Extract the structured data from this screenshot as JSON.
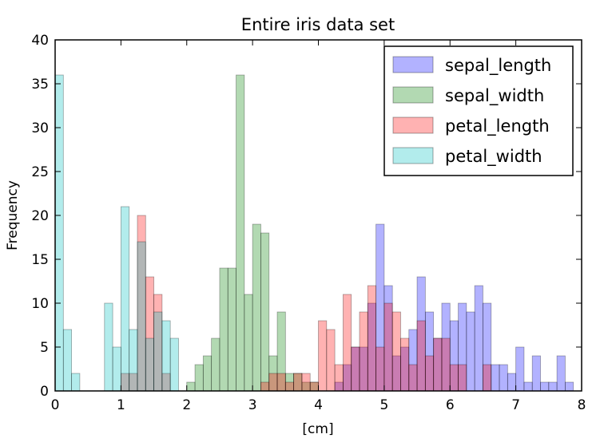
{
  "chart_data": {
    "type": "bar",
    "title": "Entire iris data set",
    "xlabel": "[cm]",
    "ylabel": "Frequency",
    "xlim": [
      0,
      8
    ],
    "ylim": [
      0,
      40
    ],
    "xticks": [
      "0",
      "1",
      "2",
      "3",
      "4",
      "5",
      "6",
      "7",
      "8"
    ],
    "yticks": [
      "0",
      "5",
      "10",
      "15",
      "20",
      "25",
      "30",
      "35",
      "40"
    ],
    "grid": false,
    "legend_position": "top-right",
    "bin_width": 0.125,
    "bin_starts": [
      0,
      0.125,
      0.25,
      0.375,
      0.5,
      0.625,
      0.75,
      0.875,
      1,
      1.125,
      1.25,
      1.375,
      1.5,
      1.625,
      1.75,
      1.875,
      2,
      2.125,
      2.25,
      2.375,
      2.5,
      2.625,
      2.75,
      2.875,
      3,
      3.125,
      3.25,
      3.375,
      3.5,
      3.625,
      3.75,
      3.875,
      4,
      4.125,
      4.25,
      4.375,
      4.5,
      4.625,
      4.75,
      4.875,
      5,
      5.125,
      5.25,
      5.375,
      5.5,
      5.625,
      5.75,
      5.875,
      6,
      6.125,
      6.25,
      6.375,
      6.5,
      6.625,
      6.75,
      6.875,
      7,
      7.125,
      7.25,
      7.375,
      7.5,
      7.625,
      7.75,
      7.875
    ],
    "series": [
      {
        "name": "sepal_length",
        "color": "#0000ff",
        "values": [
          0,
          0,
          0,
          0,
          0,
          0,
          0,
          0,
          0,
          0,
          0,
          0,
          0,
          0,
          0,
          0,
          0,
          0,
          0,
          0,
          0,
          0,
          0,
          0,
          0,
          0,
          0,
          0,
          0,
          0,
          0,
          0,
          0,
          0,
          1,
          3,
          5,
          5,
          10,
          19,
          12,
          4,
          5,
          7,
          13,
          9,
          6,
          10,
          8,
          10,
          9,
          12,
          10,
          3,
          3,
          2,
          5,
          1,
          4,
          1,
          1,
          4,
          1,
          0
        ]
      },
      {
        "name": "sepal_width",
        "color": "#008000",
        "values": [
          0,
          0,
          0,
          0,
          0,
          0,
          0,
          0,
          0,
          0,
          0,
          0,
          0,
          0,
          0,
          0,
          1,
          3,
          4,
          6,
          14,
          14,
          36,
          11,
          19,
          18,
          4,
          9,
          2,
          2,
          1,
          1,
          0,
          0,
          0,
          0,
          0,
          0,
          0,
          0,
          0,
          0,
          0,
          0,
          0,
          0,
          0,
          0,
          0,
          0,
          0,
          0,
          0,
          0,
          0,
          0,
          0,
          0,
          0,
          0,
          0,
          0,
          0,
          0
        ]
      },
      {
        "name": "petal_length",
        "color": "#ff0000",
        "values": [
          0,
          0,
          0,
          0,
          0,
          0,
          0,
          0,
          2,
          2,
          20,
          13,
          11,
          2,
          0,
          0,
          0,
          0,
          0,
          0,
          0,
          0,
          0,
          0,
          0,
          1,
          2,
          2,
          1,
          2,
          2,
          1,
          8,
          7,
          3,
          11,
          5,
          9,
          12,
          5,
          10,
          9,
          6,
          3,
          8,
          4,
          6,
          6,
          3,
          3,
          0,
          0,
          3,
          0,
          0,
          0,
          0,
          0,
          0,
          0,
          0,
          0,
          0,
          0
        ]
      },
      {
        "name": "petal_width",
        "color": "#00bfbf",
        "values": [
          36,
          7,
          2,
          0,
          0,
          0,
          10,
          5,
          21,
          7,
          17,
          6,
          9,
          8,
          6,
          0,
          0,
          0,
          0,
          0,
          0,
          0,
          0,
          0,
          0,
          0,
          0,
          0,
          0,
          0,
          0,
          0,
          0,
          0,
          0,
          0,
          0,
          0,
          0,
          0,
          0,
          0,
          0,
          0,
          0,
          0,
          0,
          0,
          0,
          0,
          0,
          0,
          0,
          0,
          0,
          0,
          0,
          0,
          0,
          0,
          0,
          0,
          0,
          0
        ]
      }
    ]
  }
}
